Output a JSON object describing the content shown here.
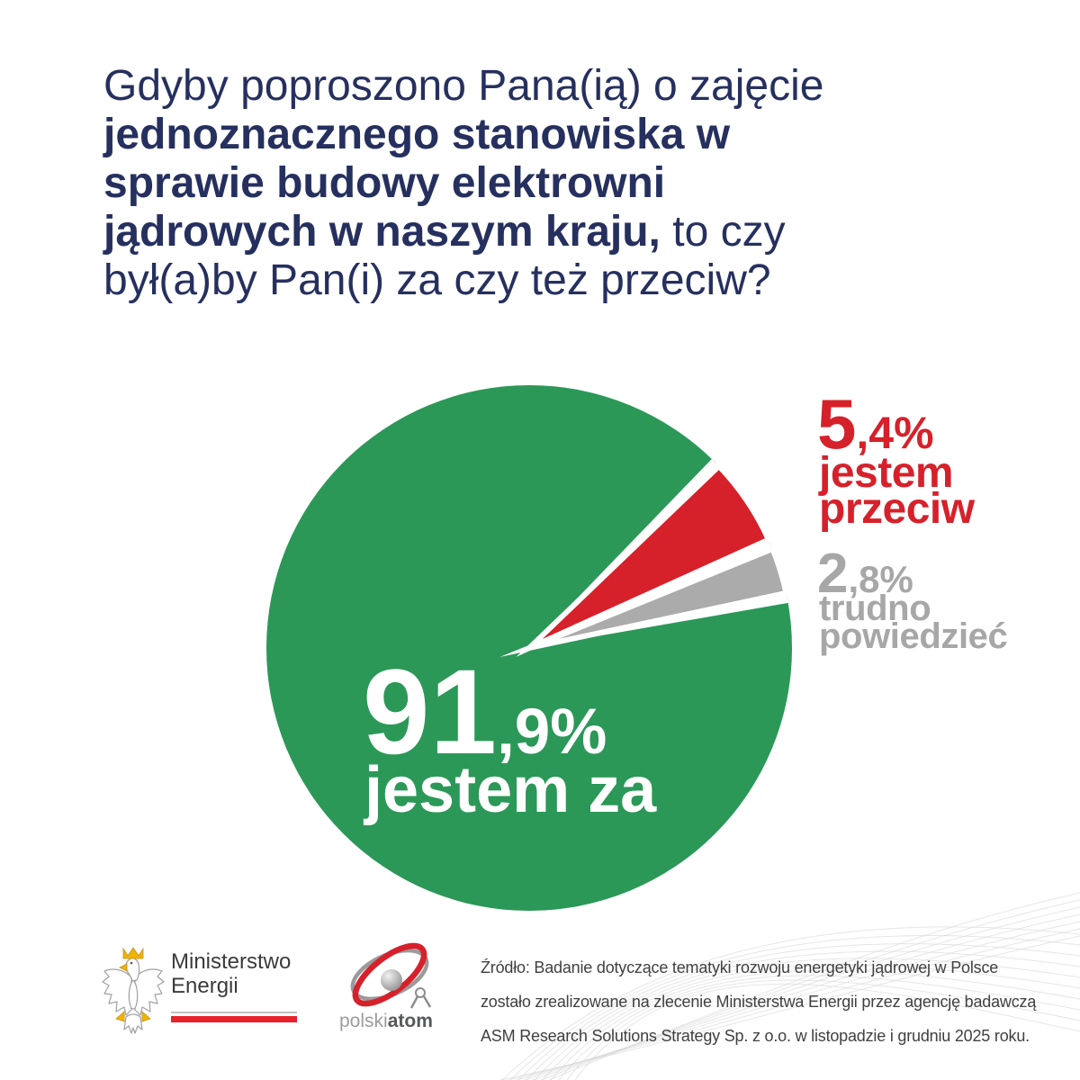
{
  "background": "#ffffff",
  "title": {
    "l1": "Gdyby poproszono Pana(ią) o zajęcie",
    "l2": "jednoznacznego stanowiska w",
    "l3": "sprawie budowy elektrowni",
    "l4b": "jądrowych w naszym kraju,",
    "l4r": " to czy",
    "l5": "był(a)by Pan(i) za czy też przeciw?"
  },
  "chart_data": {
    "type": "pie",
    "title": "Gdyby poproszono Pana(ią) o zajęcie jednoznacznego stanowiska w sprawie budowy elektrowni jądrowych w naszym kraju, to czy był(a)by Pan(i) za czy też przeciw?",
    "unit": "%",
    "slices": [
      {
        "label": "jestem za",
        "value": 91.9,
        "display": "91,9%",
        "color": "#2b9858"
      },
      {
        "label": "jestem przeciw",
        "value": 5.4,
        "display": "5,4%",
        "color": "#d6212b"
      },
      {
        "label": "trudno powiedzieć",
        "value": 2.8,
        "display": "2,8%",
        "color": "#ababab"
      }
    ],
    "start_angle_deg": -46,
    "gap_deg": 2.2,
    "legend_position": "outside-right",
    "labels_inside": [
      "jestem za"
    ]
  },
  "labels": {
    "za": {
      "num": "91",
      "frac": ",9%",
      "caption": "jestem za"
    },
    "przeciw": {
      "num": "5",
      "frac": ",4%",
      "word1": "jestem",
      "word2": "przeciw"
    },
    "trudno": {
      "num": "2",
      "frac": ",8%",
      "word1": "trudno",
      "word2": "powiedzieć"
    }
  },
  "footer": {
    "ministry": {
      "line1": "Ministerstwo",
      "line2": "Energii"
    },
    "polskiatom": {
      "part1": "polski",
      "part2": "atom"
    },
    "source_lines": [
      "Źródło: Badanie dotyczące tematyki rozwoju energetyki jądrowej w Polsce",
      "zostało zrealizowane na zlecenie Ministerstwa Energii przez agencję badawczą",
      "ASM Research Solutions Strategy Sp. z o.o. w listopadzie i grudniu 2025 roku."
    ]
  },
  "colors": {
    "navy": "#26305f",
    "green": "#2b9858",
    "red": "#d6212b",
    "gray_slice": "#ababab",
    "gray_text": "#a7a7a7",
    "source_text": "#404040",
    "flag_red": "#e8212a",
    "wave": "#d9d9d9"
  }
}
